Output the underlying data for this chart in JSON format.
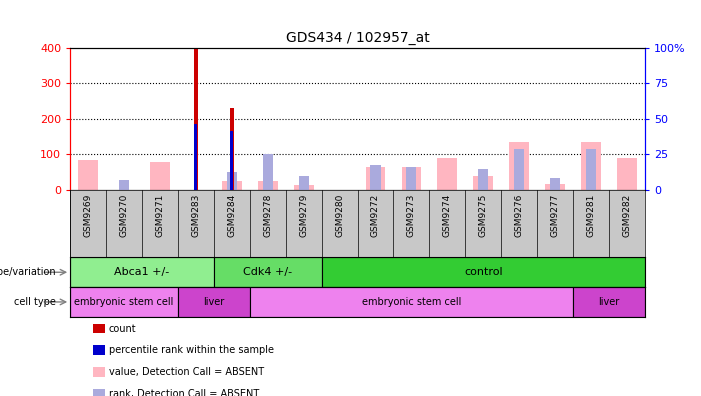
{
  "title": "GDS434 / 102957_at",
  "samples": [
    "GSM9269",
    "GSM9270",
    "GSM9271",
    "GSM9283",
    "GSM9284",
    "GSM9278",
    "GSM9279",
    "GSM9280",
    "GSM9272",
    "GSM9273",
    "GSM9274",
    "GSM9275",
    "GSM9276",
    "GSM9277",
    "GSM9281",
    "GSM9282"
  ],
  "count_values": [
    0,
    0,
    0,
    400,
    230,
    0,
    0,
    0,
    0,
    0,
    0,
    0,
    0,
    0,
    0,
    0
  ],
  "rank_values": [
    0,
    0,
    0,
    185,
    165,
    0,
    0,
    0,
    0,
    0,
    0,
    0,
    0,
    0,
    0,
    0
  ],
  "absent_value": [
    85,
    0,
    80,
    0,
    25,
    25,
    13,
    0,
    65,
    65,
    90,
    40,
    135,
    18,
    135,
    90
  ],
  "absent_rank": [
    0,
    27,
    0,
    0,
    50,
    100,
    40,
    0,
    70,
    65,
    0,
    60,
    115,
    33,
    115,
    0
  ],
  "genotype_groups": [
    {
      "label": "Abca1 +/-",
      "start": 0,
      "end": 4,
      "color": "#90EE90"
    },
    {
      "label": "Cdk4 +/-",
      "start": 4,
      "end": 7,
      "color": "#66DD66"
    },
    {
      "label": "control",
      "start": 7,
      "end": 16,
      "color": "#33CC33"
    }
  ],
  "cell_type_groups": [
    {
      "label": "embryonic stem cell",
      "start": 0,
      "end": 3,
      "color": "#EE82EE"
    },
    {
      "label": "liver",
      "start": 3,
      "end": 5,
      "color": "#CC44CC"
    },
    {
      "label": "embryonic stem cell",
      "start": 5,
      "end": 14,
      "color": "#EE82EE"
    },
    {
      "label": "liver",
      "start": 14,
      "end": 16,
      "color": "#CC44CC"
    }
  ],
  "ylim_left": [
    0,
    400
  ],
  "ylim_right": [
    0,
    100
  ],
  "yticks_left": [
    0,
    100,
    200,
    300,
    400
  ],
  "yticks_right": [
    0,
    25,
    50,
    75,
    100
  ],
  "ytick_right_labels": [
    "0",
    "25",
    "50",
    "75",
    "100%"
  ],
  "count_color": "#CC0000",
  "rank_color": "#0000CC",
  "absent_value_color": "#FFB6C1",
  "absent_rank_color": "#AAAADD",
  "plot_bg_color": "#FFFFFF",
  "xtick_bg_color": "#C8C8C8",
  "geno_label": "genotype/variation",
  "cell_label": "cell type",
  "legend_items": [
    {
      "color": "#CC0000",
      "label": "count"
    },
    {
      "color": "#0000CC",
      "label": "percentile rank within the sample"
    },
    {
      "color": "#FFB6C1",
      "label": "value, Detection Call = ABSENT"
    },
    {
      "color": "#AAAADD",
      "label": "rank, Detection Call = ABSENT"
    }
  ]
}
